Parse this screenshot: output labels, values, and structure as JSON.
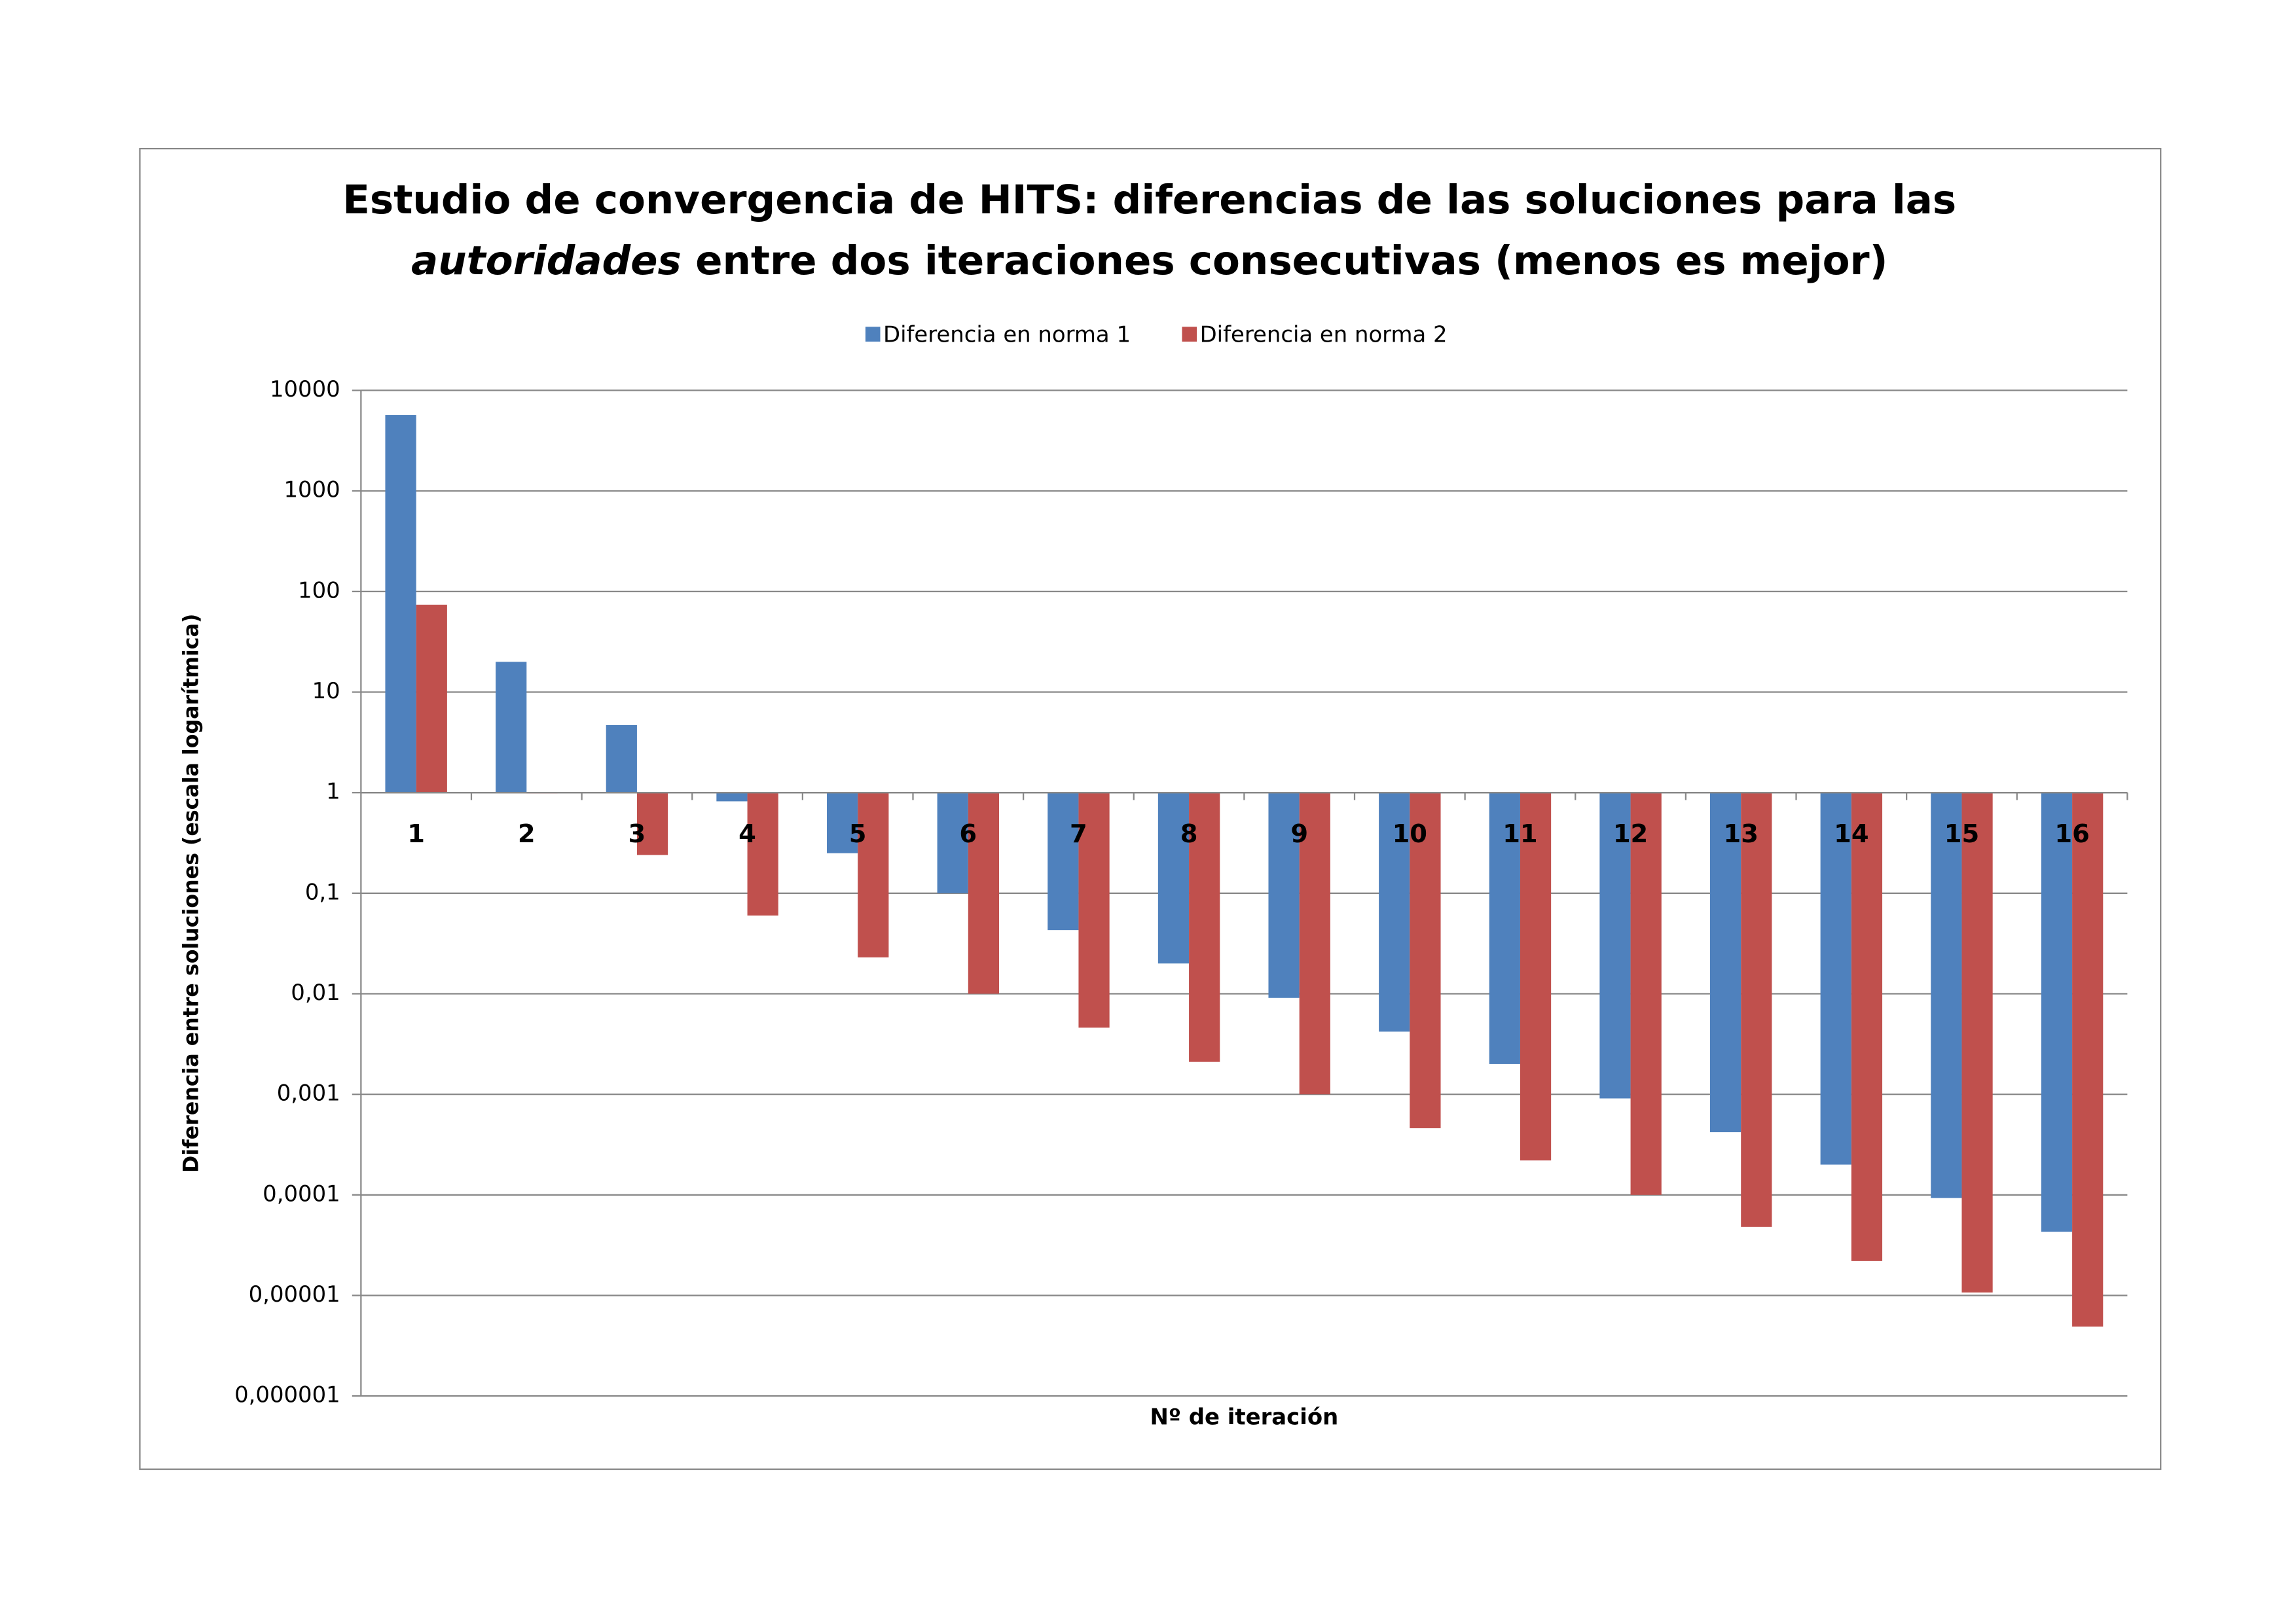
{
  "chart_data": {
    "type": "bar",
    "title": {
      "line1": "Estudio de convergencia de HITS: diferencias de las soluciones para las",
      "line2_italic": "autoridades",
      "line2_rest": " entre dos iteraciones consecutivas (menos es mejor)"
    },
    "x_label": "Nº de iteración",
    "y_label": "Diferencia entre soluciones (escala logarítmica)",
    "categories": [
      "1",
      "2",
      "3",
      "4",
      "5",
      "6",
      "7",
      "8",
      "9",
      "10",
      "11",
      "12",
      "13",
      "14",
      "15",
      "16"
    ],
    "series": [
      {
        "name": "Diferencia en norma 1",
        "color": "#4f81bd",
        "values": [
          5700,
          20,
          4.7,
          0.82,
          0.25,
          0.1,
          0.043,
          0.02,
          0.0091,
          0.0042,
          0.002,
          0.00091,
          0.00042,
          0.0002,
          9.3e-05,
          4.3e-05
        ]
      },
      {
        "name": "Diferencia en norma 2",
        "color": "#c0504d",
        "values": [
          74,
          0.99,
          0.24,
          0.06,
          0.023,
          0.01,
          0.0046,
          0.0021,
          0.001,
          0.00046,
          0.00022,
          0.0001,
          4.8e-05,
          2.2e-05,
          1.07e-05,
          4.9e-06
        ]
      }
    ],
    "log_scale": true,
    "ylim": [
      1e-06,
      10000
    ],
    "yticks": [
      10000,
      1000,
      100,
      10,
      1,
      {
        "value": 0.1,
        "label": "0,1"
      },
      {
        "value": 0.01,
        "label": "0,01"
      },
      {
        "value": 0.001,
        "label": "0,001"
      },
      {
        "value": 0.0001,
        "label": "0,0001"
      },
      {
        "value": 1e-05,
        "label": "0,00001"
      },
      {
        "value": 1e-06,
        "label": "0,000001"
      }
    ],
    "grid": true,
    "legend_position": "top"
  }
}
